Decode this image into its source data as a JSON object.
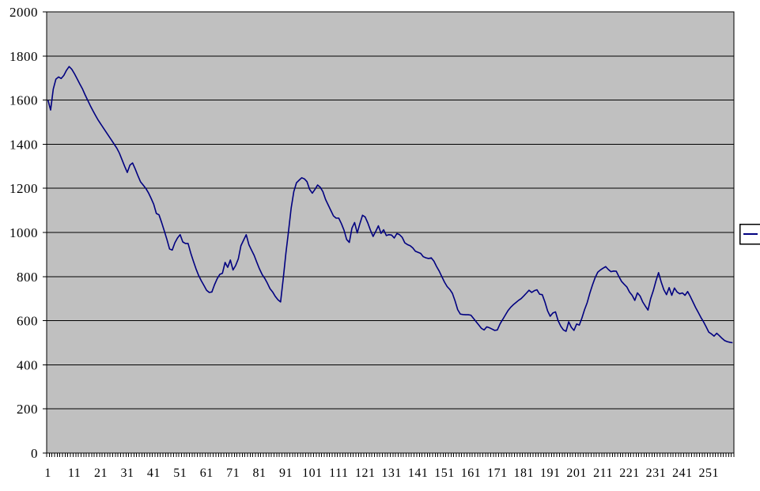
{
  "chart_data": {
    "type": "line",
    "title": "",
    "xlabel": "",
    "ylabel": "",
    "ylim": [
      0,
      2000
    ],
    "y_tick_step": 200,
    "y_ticks": [
      0,
      200,
      400,
      600,
      800,
      1000,
      1200,
      1400,
      1600,
      1800,
      2000
    ],
    "x_tick_points": [
      1,
      11,
      21,
      31,
      41,
      51,
      61,
      71,
      81,
      91,
      101,
      111,
      121,
      131,
      141,
      151,
      161,
      171,
      181,
      191,
      201,
      211,
      221,
      231,
      241,
      251
    ],
    "x_tick_labels": [
      "1",
      "11",
      "21",
      "31",
      "41",
      "51",
      "61",
      "71",
      "81",
      "91",
      "101",
      "111",
      "121",
      "131",
      "141",
      "151",
      "161",
      "171",
      "181",
      "191",
      "201",
      "211",
      "221",
      "231",
      "241",
      "251"
    ],
    "n_points": 260,
    "grid": "horizontal",
    "legend_position": "right-edge-clipped",
    "legend": {
      "label": ""
    },
    "colors": {
      "page_background": "#ffffff",
      "plot_background": "#c0c0c0",
      "gridline": "#000000",
      "axis": "#000000",
      "tick": "#000000",
      "series_line": "#000080",
      "legend_background": "#ffffff",
      "legend_border": "#000000"
    },
    "series": [
      {
        "name": "",
        "color": "#000080",
        "values": [
          1600,
          1555,
          1650,
          1695,
          1705,
          1698,
          1712,
          1735,
          1752,
          1740,
          1720,
          1697,
          1674,
          1652,
          1625,
          1600,
          1575,
          1552,
          1530,
          1509,
          1491,
          1473,
          1455,
          1437,
          1419,
          1401,
          1383,
          1360,
          1330,
          1300,
          1272,
          1305,
          1315,
          1288,
          1258,
          1230,
          1215,
          1200,
          1180,
          1155,
          1128,
          1086,
          1080,
          1045,
          1007,
          968,
          925,
          920,
          953,
          975,
          990,
          957,
          950,
          950,
          907,
          870,
          835,
          805,
          781,
          760,
          738,
          728,
          730,
          763,
          790,
          810,
          815,
          864,
          842,
          875,
          830,
          850,
          880,
          940,
          965,
          990,
          945,
          920,
          896,
          865,
          835,
          810,
          792,
          770,
          745,
          730,
          710,
          695,
          685,
          790,
          905,
          1005,
          1110,
          1185,
          1225,
          1237,
          1248,
          1243,
          1230,
          1195,
          1178,
          1195,
          1215,
          1205,
          1185,
          1150,
          1125,
          1100,
          1075,
          1065,
          1065,
          1040,
          1010,
          968,
          955,
          1020,
          1045,
          998,
          1040,
          1078,
          1070,
          1043,
          1010,
          982,
          1005,
          1030,
          996,
          1012,
          986,
          990,
          988,
          975,
          995,
          990,
          978,
          953,
          945,
          940,
          930,
          915,
          910,
          905,
          890,
          885,
          882,
          885,
          870,
          846,
          825,
          800,
          775,
          755,
          742,
          724,
          690,
          650,
          630,
          628,
          627,
          627,
          625,
          610,
          595,
          580,
          565,
          558,
          572,
          568,
          562,
          556,
          558,
          585,
          605,
          625,
          645,
          660,
          672,
          682,
          692,
          700,
          712,
          725,
          738,
          728,
          736,
          740,
          720,
          718,
          685,
          645,
          620,
          635,
          640,
          600,
          575,
          558,
          552,
          595,
          570,
          556,
          585,
          580,
          612,
          650,
          682,
          725,
          762,
          795,
          820,
          830,
          838,
          845,
          832,
          822,
          825,
          824,
          800,
          778,
          765,
          753,
          730,
          715,
          692,
          726,
          712,
          685,
          666,
          648,
          700,
          736,
          780,
          818,
          775,
          740,
          718,
          750,
          715,
          748,
          730,
          722,
          726,
          715,
          732,
          710,
          685,
          660,
          638,
          615,
          595,
          572,
          548,
          540,
          530,
          543,
          532,
          520,
          510,
          505,
          502,
          500
        ]
      }
    ]
  }
}
